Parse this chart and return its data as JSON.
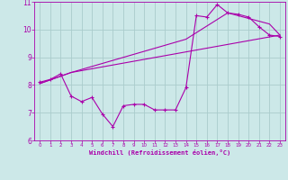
{
  "xlabel": "Windchill (Refroidissement éolien,°C)",
  "bg_color": "#cce8e8",
  "grid_color": "#aacccc",
  "line_color": "#aa00aa",
  "xlim": [
    -0.5,
    23.5
  ],
  "ylim": [
    6,
    11
  ],
  "yticks": [
    6,
    7,
    8,
    9,
    10,
    11
  ],
  "xticks": [
    0,
    1,
    2,
    3,
    4,
    5,
    6,
    7,
    8,
    9,
    10,
    11,
    12,
    13,
    14,
    15,
    16,
    17,
    18,
    19,
    20,
    21,
    22,
    23
  ],
  "line1_x": [
    0,
    1,
    2,
    3,
    4,
    5,
    6,
    7,
    8,
    9,
    10,
    11,
    12,
    13,
    14,
    15,
    16,
    17,
    18,
    19,
    20,
    21,
    22,
    23
  ],
  "line1_y": [
    8.1,
    8.2,
    8.4,
    7.6,
    7.4,
    7.55,
    6.95,
    6.5,
    7.25,
    7.3,
    7.3,
    7.1,
    7.1,
    7.1,
    7.9,
    10.5,
    10.45,
    10.9,
    10.6,
    10.55,
    10.45,
    10.1,
    9.8,
    9.75
  ],
  "line2_x": [
    0,
    3,
    23
  ],
  "line2_y": [
    8.05,
    8.45,
    9.8
  ],
  "line3_x": [
    0,
    3,
    14,
    18,
    22,
    23
  ],
  "line3_y": [
    8.05,
    8.45,
    9.65,
    10.6,
    10.2,
    9.8
  ]
}
